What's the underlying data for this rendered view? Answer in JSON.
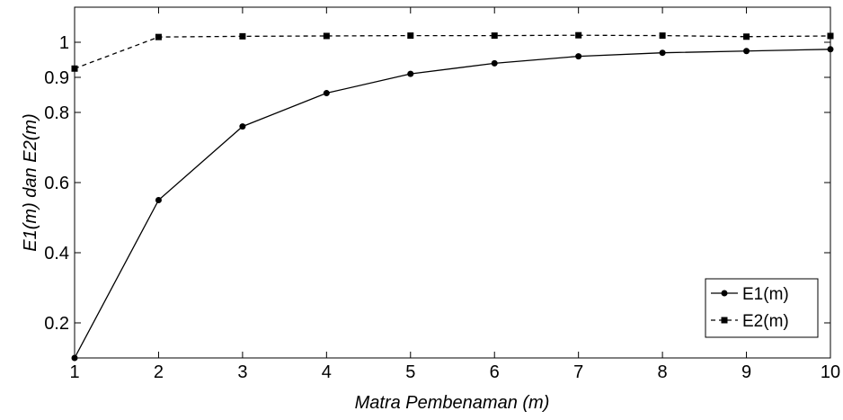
{
  "chart_data": {
    "type": "line",
    "xlabel": "Matra Pembenaman (m)",
    "ylabel": "E1(m) dan E2(m)",
    "xlim": [
      1,
      10
    ],
    "ylim": [
      0.1,
      1.1
    ],
    "x": [
      1,
      2,
      3,
      4,
      5,
      6,
      7,
      8,
      9,
      10
    ],
    "xticks": [
      "1",
      "2",
      "3",
      "4",
      "5",
      "6",
      "7",
      "8",
      "9",
      "10"
    ],
    "yticks": [
      {
        "value": 0.2,
        "label": "0.2"
      },
      {
        "value": 0.4,
        "label": "0.4"
      },
      {
        "value": 0.6,
        "label": "0.6"
      },
      {
        "value": 0.8,
        "label": "0.8"
      },
      {
        "value": 0.9,
        "label": "0.9"
      },
      {
        "value": 1.0,
        "label": "1"
      }
    ],
    "grid": false,
    "legend_position": "bottom-right",
    "series": [
      {
        "name": "E1(m)",
        "line_style": "solid",
        "marker": "circle",
        "color": "#000000",
        "values": [
          0.1,
          0.55,
          0.76,
          0.855,
          0.91,
          0.94,
          0.96,
          0.97,
          0.975,
          0.98
        ]
      },
      {
        "name": "E2(m)",
        "line_style": "dashed",
        "marker": "square",
        "color": "#000000",
        "values": [
          0.925,
          1.015,
          1.017,
          1.018,
          1.019,
          1.019,
          1.02,
          1.019,
          1.016,
          1.018
        ]
      }
    ]
  }
}
